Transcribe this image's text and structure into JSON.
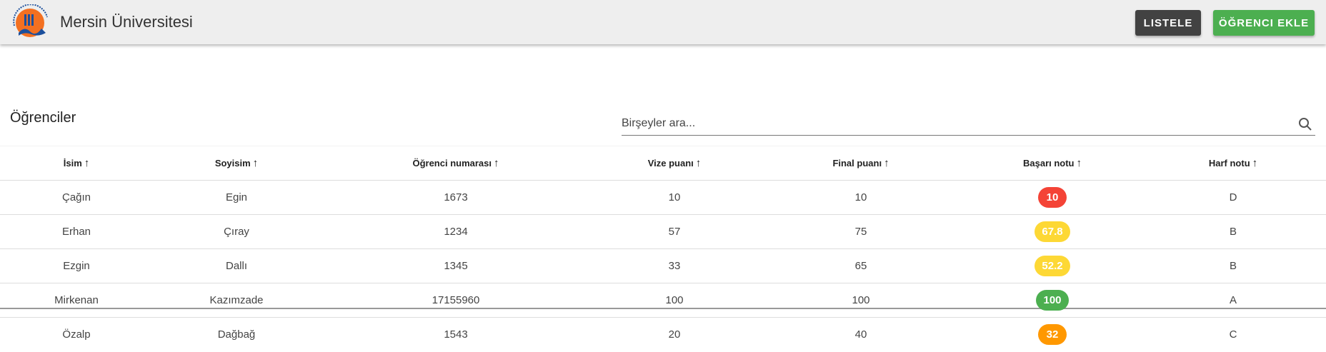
{
  "header": {
    "title": "Mersin Üniversitesi",
    "logo_text": "MERSİN ÜNİVERSİTESİ 1992",
    "list_button": "LISTELE",
    "add_button": "ÖĞRENCI EKLE"
  },
  "main": {
    "title": "Öğrenciler",
    "search_placeholder": "Birşeyler ara...",
    "search_value": ""
  },
  "table": {
    "columns": [
      "İsim",
      "Soyisim",
      "Öğrenci numarası",
      "Vize puanı",
      "Final puanı",
      "Başarı notu",
      "Harf notu"
    ],
    "rows": [
      {
        "name": "Çağın",
        "surname": "Egin",
        "number": "1673",
        "midterm": "10",
        "final": "10",
        "score": "10",
        "score_color": "#f44336",
        "letter": "D"
      },
      {
        "name": "Erhan",
        "surname": "Çıray",
        "number": "1234",
        "midterm": "57",
        "final": "75",
        "score": "67.8",
        "score_color": "#fdd835",
        "letter": "B"
      },
      {
        "name": "Ezgin",
        "surname": "Dallı",
        "number": "1345",
        "midterm": "33",
        "final": "65",
        "score": "52.2",
        "score_color": "#fdd835",
        "letter": "B"
      },
      {
        "name": "Mirkenan",
        "surname": "Kazımzade",
        "number": "17155960",
        "midterm": "100",
        "final": "100",
        "score": "100",
        "score_color": "#4caf50",
        "letter": "A"
      },
      {
        "name": "Özalp",
        "surname": "Dağbağ",
        "number": "1543",
        "midterm": "20",
        "final": "40",
        "score": "32",
        "score_color": "#ff9800",
        "letter": "C"
      }
    ]
  },
  "icons": {
    "search": "search-icon",
    "sort": "arrow-up-icon"
  }
}
